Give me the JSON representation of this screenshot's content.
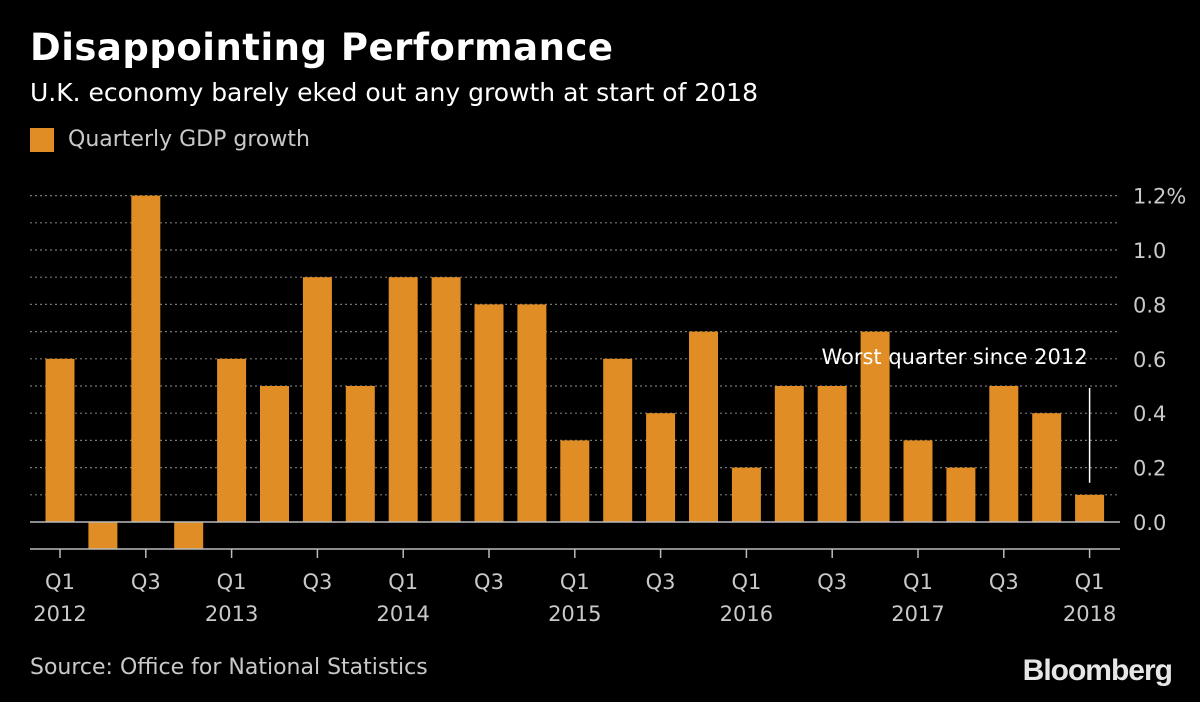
{
  "title": "Disappointing Performance",
  "subtitle": "U.K. economy barely eked out any growth at start of 2018",
  "source": "Source: Office for National Statistics",
  "brand": "Bloomberg",
  "colors": {
    "bar": "#E08D25",
    "background": "#000000",
    "grid": "#777777",
    "text": "#C9C9C9"
  },
  "chart_data": {
    "type": "bar",
    "legend": [
      "Quarterly GDP growth"
    ],
    "categories": [
      "2012 Q1",
      "2012 Q2",
      "2012 Q3",
      "2012 Q4",
      "2013 Q1",
      "2013 Q2",
      "2013 Q3",
      "2013 Q4",
      "2014 Q1",
      "2014 Q2",
      "2014 Q3",
      "2014 Q4",
      "2015 Q1",
      "2015 Q2",
      "2015 Q3",
      "2015 Q4",
      "2016 Q1",
      "2016 Q2",
      "2016 Q3",
      "2016 Q4",
      "2017 Q1",
      "2017 Q2",
      "2017 Q3",
      "2017 Q4",
      "2018 Q1"
    ],
    "values": [
      0.6,
      -0.1,
      1.2,
      -0.1,
      0.6,
      0.5,
      0.9,
      0.5,
      0.9,
      0.9,
      0.8,
      0.8,
      0.3,
      0.6,
      0.4,
      0.7,
      0.2,
      0.5,
      0.5,
      0.7,
      0.3,
      0.2,
      0.5,
      0.4,
      0.1
    ],
    "series": [
      {
        "name": "Quarterly GDP growth",
        "values": [
          0.6,
          -0.1,
          1.2,
          -0.1,
          0.6,
          0.5,
          0.9,
          0.5,
          0.9,
          0.9,
          0.8,
          0.8,
          0.3,
          0.6,
          0.4,
          0.7,
          0.2,
          0.5,
          0.5,
          0.7,
          0.3,
          0.2,
          0.5,
          0.4,
          0.1
        ]
      }
    ],
    "ylim": [
      -0.1,
      1.2
    ],
    "yticks": [
      {
        "value": 0.0,
        "label": "0.0"
      },
      {
        "value": 0.2,
        "label": "0.2"
      },
      {
        "value": 0.4,
        "label": "0.4"
      },
      {
        "value": 0.6,
        "label": "0.6"
      },
      {
        "value": 0.8,
        "label": "0.8"
      },
      {
        "value": 1.0,
        "label": "1.0"
      },
      {
        "value": 1.2,
        "label": "1.2%"
      }
    ],
    "gridlines_every": 0.1,
    "xticks": [
      {
        "index": 0,
        "quarter": "Q1",
        "year": "2012"
      },
      {
        "index": 2,
        "quarter": "Q3",
        "year": ""
      },
      {
        "index": 4,
        "quarter": "Q1",
        "year": "2013"
      },
      {
        "index": 6,
        "quarter": "Q3",
        "year": ""
      },
      {
        "index": 8,
        "quarter": "Q1",
        "year": "2014"
      },
      {
        "index": 10,
        "quarter": "Q3",
        "year": ""
      },
      {
        "index": 12,
        "quarter": "Q1",
        "year": "2015"
      },
      {
        "index": 14,
        "quarter": "Q3",
        "year": ""
      },
      {
        "index": 16,
        "quarter": "Q1",
        "year": "2016"
      },
      {
        "index": 18,
        "quarter": "Q3",
        "year": ""
      },
      {
        "index": 20,
        "quarter": "Q1",
        "year": "2017"
      },
      {
        "index": 22,
        "quarter": "Q3",
        "year": ""
      },
      {
        "index": 24,
        "quarter": "Q1",
        "year": "2018"
      }
    ],
    "annotation": {
      "text": "Worst quarter since 2012",
      "index": 24,
      "value": 0.1
    },
    "xlabel": "",
    "ylabel": ""
  }
}
